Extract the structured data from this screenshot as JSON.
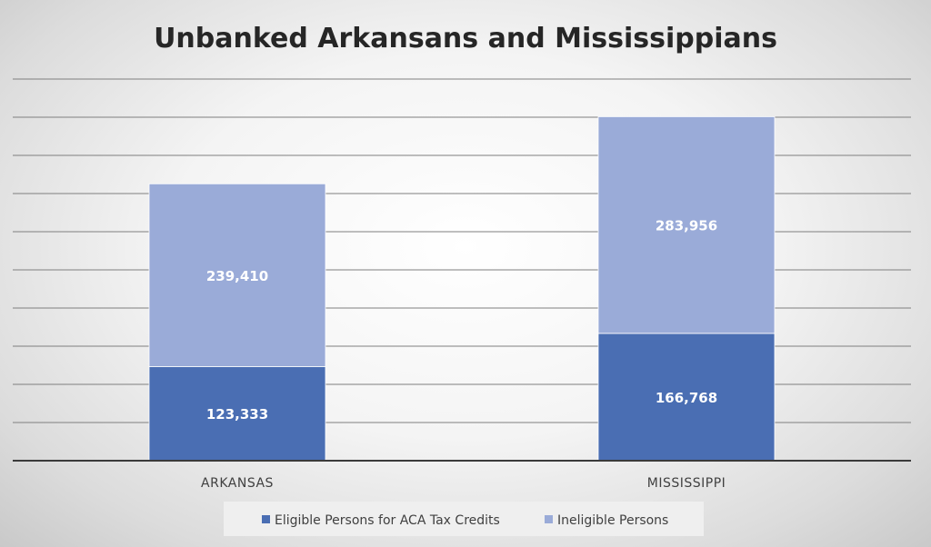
{
  "chart_data": {
    "type": "bar",
    "stacked": true,
    "title": "Unbanked Arkansans and Mississippians",
    "categories": [
      "ARKANSAS",
      "MISSISSIPPI"
    ],
    "series": [
      {
        "name": "Eligible Persons for ACA Tax Credits",
        "values": [
          123333,
          166768
        ],
        "labels": [
          "123,333",
          "166,768"
        ],
        "color": "#4a6eb3"
      },
      {
        "name": "Ineligible Persons",
        "values": [
          239410,
          283956
        ],
        "labels": [
          "239,410",
          "283,956"
        ],
        "color": "#9aabd8"
      }
    ],
    "ylim": [
      0,
      500000
    ],
    "y_gridline_step": 50000,
    "y_tick_labels_visible": false,
    "grid": true,
    "legend": "bottom"
  }
}
